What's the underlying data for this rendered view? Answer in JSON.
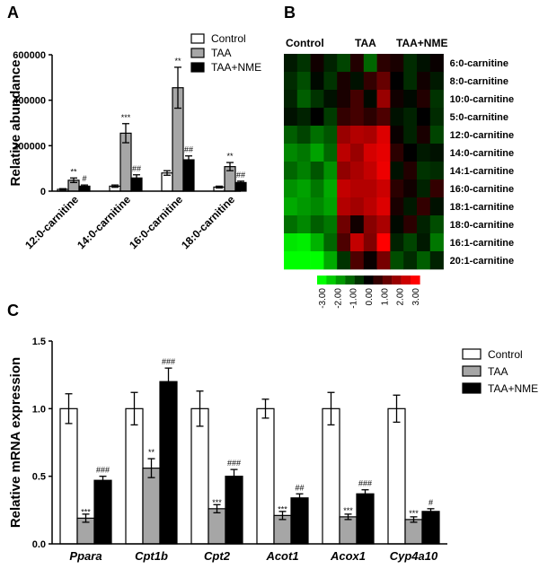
{
  "chart_data": [
    {
      "panel": "A",
      "type": "bar",
      "ylabel": "Relative abundance",
      "ylim": [
        0,
        600000
      ],
      "yticks": [
        "0",
        "200000",
        "400000",
        "600000"
      ],
      "categories": [
        "12:0-carnitine",
        "14:0-carnitine",
        "16:0-carnitine",
        "18:0-carnitine"
      ],
      "series": [
        {
          "name": "Control",
          "color": "#ffffff",
          "values": [
            8000,
            22000,
            80000,
            18000
          ],
          "errors": [
            3000,
            5000,
            10000,
            4000
          ]
        },
        {
          "name": "TAA",
          "color": "#a6a6a6",
          "values": [
            48000,
            255000,
            455000,
            108000
          ],
          "errors": [
            10000,
            42000,
            90000,
            18000
          ]
        },
        {
          "name": "TAA+NME",
          "color": "#000000",
          "values": [
            22000,
            58000,
            138000,
            38000
          ],
          "errors": [
            5000,
            14000,
            17000,
            6000
          ]
        }
      ],
      "significance": {
        "TAA": [
          "**",
          "***",
          "**",
          "**"
        ],
        "TAA+NME": [
          "#",
          "##",
          "##",
          "##"
        ]
      },
      "legend": "top-right"
    },
    {
      "panel": "B",
      "type": "heatmap",
      "groups": [
        "Control",
        "TAA",
        "TAA+NME"
      ],
      "rows": [
        "6:0-carnitine",
        "8:0-carnitine",
        "10:0-carnitine",
        "5:0-carnitine",
        "12:0-carnitine",
        "14:0-carnitine",
        "14:1-carnitine",
        "16:0-carnitine",
        "18:1-carnitine",
        "18:0-carnitine",
        "16:1-carnitine",
        "20:1-carnitine"
      ],
      "columns_per_group": 4,
      "values": [
        [
          -0.3,
          -0.6,
          0.2,
          -0.4,
          -0.8,
          0.4,
          -1.2,
          0.5,
          0.3,
          -0.5,
          -0.2,
          0.1
        ],
        [
          -0.5,
          -0.9,
          -0.1,
          -0.6,
          0.3,
          -0.2,
          0.6,
          1.2,
          0.0,
          -0.5,
          0.2,
          -0.3
        ],
        [
          -0.4,
          -1.1,
          -0.6,
          -0.2,
          0.3,
          0.8,
          -0.1,
          1.8,
          0.2,
          -0.1,
          0.4,
          -0.6
        ],
        [
          -0.2,
          -0.4,
          0.0,
          -0.7,
          0.6,
          0.8,
          0.5,
          0.9,
          -0.2,
          -0.4,
          0.0,
          -0.5
        ],
        [
          -1.1,
          -0.8,
          -1.3,
          -1.0,
          1.8,
          2.1,
          2.0,
          2.6,
          0.1,
          -0.4,
          0.3,
          -0.8
        ],
        [
          -1.6,
          -1.4,
          -1.9,
          -1.2,
          2.2,
          1.8,
          2.5,
          2.7,
          0.5,
          0.0,
          -0.3,
          -0.2
        ],
        [
          -1.2,
          -1.5,
          -1.0,
          -1.7,
          1.7,
          2.0,
          2.3,
          2.8,
          -0.2,
          0.4,
          -0.6,
          -0.5
        ],
        [
          -1.7,
          -1.9,
          -1.4,
          -2.0,
          2.3,
          2.1,
          2.1,
          2.4,
          0.5,
          0.2,
          -0.4,
          0.6
        ],
        [
          -2.0,
          -1.8,
          -1.6,
          -1.9,
          2.1,
          1.9,
          2.2,
          2.6,
          0.3,
          -0.3,
          0.6,
          -0.2
        ],
        [
          -1.3,
          -1.6,
          -1.1,
          -1.4,
          1.3,
          0.2,
          1.6,
          2.0,
          -0.1,
          0.5,
          -0.4,
          -0.9
        ],
        [
          -2.7,
          -2.8,
          -2.1,
          -1.2,
          0.9,
          2.3,
          1.5,
          3.0,
          -0.4,
          -0.8,
          -0.3,
          -1.4
        ],
        [
          -3.0,
          -3.0,
          -3.0,
          -2.0,
          -0.6,
          0.9,
          0.1,
          1.4,
          -0.9,
          -0.5,
          -1.1,
          -0.4
        ]
      ],
      "colorbar": [
        "-3.00",
        "-2.00",
        "-1.00",
        "0.00",
        "1.00",
        "2.00",
        "3.00"
      ],
      "colorbar_colors": [
        "#00ff00",
        "#00cc00",
        "#009900",
        "#006600",
        "#003300",
        "#000000",
        "#330000",
        "#660000",
        "#990000",
        "#cc0000",
        "#ff0000"
      ]
    },
    {
      "panel": "C",
      "type": "bar",
      "ylabel": "Relative mRNA expression",
      "ylim": [
        0,
        1.5
      ],
      "yticks": [
        "0.0",
        "0.5",
        "1.0",
        "1.5"
      ],
      "categories": [
        "Ppara",
        "Cpt1b",
        "Cpt2",
        "Acot1",
        "Acox1",
        "Cyp4a10"
      ],
      "series": [
        {
          "name": "Control",
          "color": "#ffffff",
          "values": [
            1.0,
            1.0,
            1.0,
            1.0,
            1.0,
            1.0
          ],
          "errors": [
            0.11,
            0.12,
            0.13,
            0.07,
            0.12,
            0.1
          ]
        },
        {
          "name": "TAA",
          "color": "#a6a6a6",
          "values": [
            0.19,
            0.56,
            0.26,
            0.21,
            0.2,
            0.18
          ],
          "errors": [
            0.03,
            0.07,
            0.03,
            0.03,
            0.02,
            0.02
          ]
        },
        {
          "name": "TAA+NME",
          "color": "#000000",
          "values": [
            0.47,
            1.2,
            0.5,
            0.34,
            0.37,
            0.24
          ],
          "errors": [
            0.03,
            0.1,
            0.05,
            0.03,
            0.03,
            0.02
          ]
        }
      ],
      "significance": {
        "TAA": [
          "***",
          "**",
          "***",
          "***",
          "***",
          "***"
        ],
        "TAA+NME": [
          "###",
          "###",
          "###",
          "##",
          "###",
          "#"
        ]
      },
      "legend": "top-right"
    }
  ]
}
